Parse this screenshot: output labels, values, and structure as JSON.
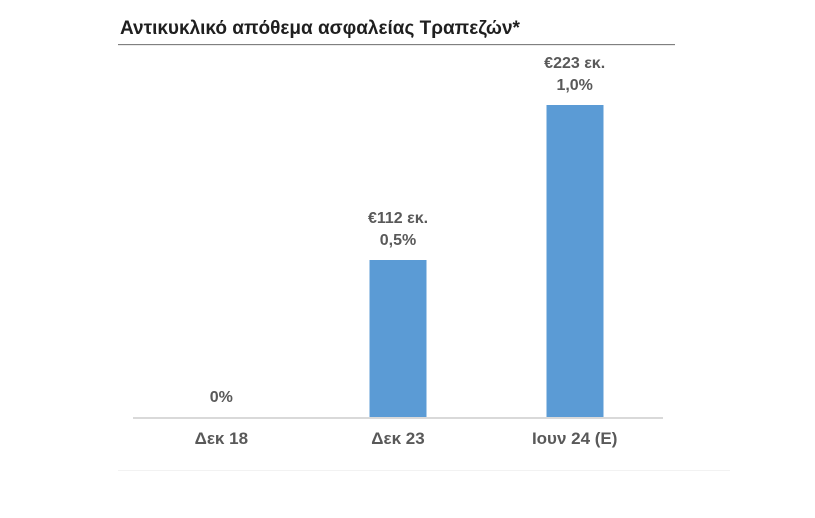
{
  "chart_data": {
    "type": "bar",
    "title": "Αντικυκλικό απόθεμα ασφαλείας Τραπεζών*",
    "categories": [
      "Δεκ 18",
      "Δεκ 23",
      "Ιουν 24 (Ε)"
    ],
    "series": [
      {
        "name": "€ εκ.",
        "values": [
          0,
          112,
          223
        ]
      },
      {
        "name": "%",
        "values": [
          0,
          0.5,
          1.0
        ]
      }
    ],
    "bars": [
      {
        "category": "Δεκ 18",
        "amount_label": "",
        "pct_label": "0%",
        "value": 0
      },
      {
        "category": "Δεκ 23",
        "amount_label": "€112 εκ.",
        "pct_label": "0,5%",
        "value": 112
      },
      {
        "category": "Ιουν 24 (Ε)",
        "amount_label": "€223 εκ.",
        "pct_label": "1,0%",
        "value": 223
      }
    ],
    "max_value": 223,
    "ylim": [
      0,
      223
    ],
    "xlabel": "",
    "ylabel": "",
    "grid": false,
    "legend": false,
    "colors": {
      "bar": "#5B9BD5",
      "axis": "#D9D9D9",
      "labels": "#595959",
      "title": "#1F1F1F",
      "title_rule": "#808080",
      "background": "#FFFFFF"
    }
  }
}
